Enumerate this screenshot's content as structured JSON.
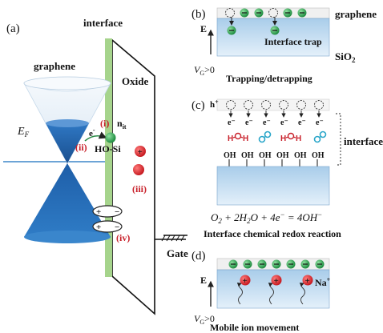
{
  "panels": {
    "a": {
      "label": "(a)",
      "interface_label": "interface",
      "graphene_label": "graphene",
      "oxide_label": "Oxide",
      "gate_label": "Gate",
      "ef_main": "E",
      "ef_sub": "F",
      "n_main": "n",
      "n_sub": "it",
      "hosi_label": "HO-Si",
      "electron_label": "e",
      "electron_sup": "-",
      "marker_i": "(i)",
      "marker_ii": "(ii)",
      "marker_iii": "(iii)",
      "marker_iv": "(iv)"
    },
    "b": {
      "label": "(b)",
      "graphene_label": "graphene",
      "trap_label": "Interface trap",
      "sio2_main": "SiO",
      "sio2_sub": "2",
      "e_label": "E",
      "vg_main": "V",
      "vg_sub": "G",
      "vg_rel": ">0",
      "caption": "Trapping/detrapping"
    },
    "c": {
      "label": "(c)",
      "hole_main": "h",
      "hole_sup": "+",
      "electron_labels": [
        "e⁻",
        "e⁻",
        "e⁻",
        "e⁻",
        "e⁻",
        "e⁻"
      ],
      "oh_labels": [
        "OH",
        "OH",
        "OH",
        "OH",
        "OH",
        "OH"
      ],
      "interface_label": "interface",
      "equation": {
        "o": "O",
        "o_sub": "2",
        "plus1": " + 2",
        "h": "H",
        "h_sub": "2",
        "o2": "O + 4",
        "e": "e",
        "e_sup": "−",
        "eq": " = 4",
        "oh": "OH",
        "oh_sup": "−"
      },
      "caption": "Interface chemical redox reaction"
    },
    "d": {
      "label": "(d)",
      "e_label": "E",
      "na_main": "Na",
      "na_sup": "+",
      "vg_main": "V",
      "vg_sub": "G",
      "vg_rel": ">0",
      "caption": "Mobile ion movement"
    }
  },
  "colors": {
    "graphene_band": "#6aa3d4",
    "interface_green": "#a6d48c",
    "electron_green": "#2fa84f",
    "ion_red": "#e0252c",
    "molecule_red": "#c8202a",
    "molecule_blue": "#2aa6c9",
    "oxide_blue": "#c8dff2"
  }
}
